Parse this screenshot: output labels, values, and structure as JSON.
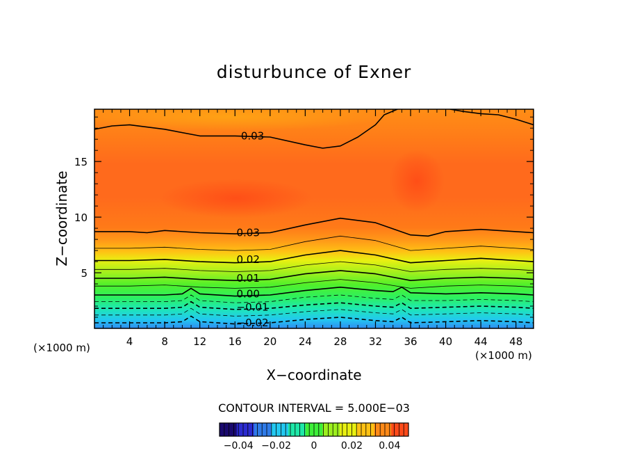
{
  "chart_data": {
    "type": "contour",
    "title": "disturbunce of Exner",
    "xlabel": "X−coordinate",
    "ylabel": "Z−coordinate",
    "x_unit_left": "(×1000 m)",
    "x_unit_right": "(×1000 m)",
    "xlim": [
      0,
      50
    ],
    "ylim": [
      0,
      19.7
    ],
    "x_ticks": [
      4,
      8,
      12,
      16,
      20,
      24,
      28,
      32,
      36,
      40,
      44,
      48
    ],
    "y_ticks": [
      5,
      10,
      15
    ],
    "contour_interval_text": "CONTOUR INTERVAL = 5.000E−03",
    "contour_labels": [
      {
        "text": "0.03",
        "x": 18.0,
        "y": 17.3
      },
      {
        "text": "0.03",
        "x": 17.5,
        "y": 8.6
      },
      {
        "text": "0.02",
        "x": 17.5,
        "y": 6.2
      },
      {
        "text": "0.01",
        "x": 17.5,
        "y": 4.5
      },
      {
        "text": "0.00",
        "x": 17.5,
        "y": 3.1
      },
      {
        "text": "−0.01",
        "x": 18.0,
        "y": 1.9
      },
      {
        "text": "−0.02",
        "x": 18.0,
        "y": 0.5
      }
    ],
    "contours": [
      {
        "level": 0.03,
        "x": [
          0,
          2,
          4,
          8,
          12,
          16,
          20,
          24,
          26,
          28,
          30,
          32,
          33,
          34.5
        ],
        "y": [
          17.9,
          18.2,
          18.3,
          17.9,
          17.3,
          17.3,
          17.2,
          16.5,
          16.2,
          16.4,
          17.2,
          18.3,
          19.2,
          19.7
        ]
      },
      {
        "level": 0.03,
        "x": [
          40.5,
          42,
          44,
          46,
          48,
          50
        ],
        "y": [
          19.7,
          19.5,
          19.3,
          19.2,
          18.8,
          18.3
        ]
      },
      {
        "level": 0.03,
        "x": [
          0,
          4,
          6,
          8,
          12,
          16,
          20,
          24,
          28,
          32,
          36,
          38,
          40,
          44,
          48,
          50
        ],
        "y": [
          8.7,
          8.7,
          8.6,
          8.8,
          8.6,
          8.5,
          8.6,
          9.3,
          9.9,
          9.5,
          8.4,
          8.3,
          8.7,
          8.9,
          8.7,
          8.6
        ]
      },
      {
        "level": 0.025,
        "x": [
          0,
          4,
          8,
          12,
          16,
          20,
          24,
          28,
          32,
          36,
          40,
          44,
          48,
          50
        ],
        "y": [
          7.2,
          7.2,
          7.3,
          7.1,
          7.0,
          7.1,
          7.8,
          8.3,
          7.9,
          7.0,
          7.2,
          7.4,
          7.2,
          7.1
        ]
      },
      {
        "level": 0.02,
        "x": [
          0,
          4,
          8,
          12,
          16,
          20,
          24,
          28,
          32,
          36,
          40,
          44,
          48,
          50
        ],
        "y": [
          6.1,
          6.1,
          6.2,
          6.0,
          5.9,
          6.0,
          6.6,
          7.0,
          6.6,
          5.9,
          6.1,
          6.3,
          6.1,
          6.0
        ]
      },
      {
        "level": 0.015,
        "x": [
          0,
          4,
          8,
          12,
          16,
          20,
          24,
          28,
          32,
          36,
          40,
          44,
          48,
          50
        ],
        "y": [
          5.3,
          5.3,
          5.4,
          5.2,
          5.1,
          5.2,
          5.7,
          6.0,
          5.7,
          5.1,
          5.3,
          5.4,
          5.3,
          5.2
        ]
      },
      {
        "level": 0.01,
        "x": [
          0,
          4,
          8,
          12,
          16,
          20,
          24,
          28,
          32,
          36,
          40,
          44,
          48,
          50
        ],
        "y": [
          4.5,
          4.5,
          4.6,
          4.4,
          4.3,
          4.4,
          4.9,
          5.2,
          4.9,
          4.3,
          4.5,
          4.6,
          4.5,
          4.4
        ]
      },
      {
        "level": 0.005,
        "x": [
          0,
          4,
          8,
          12,
          16,
          20,
          24,
          28,
          32,
          36,
          40,
          44,
          48,
          50
        ],
        "y": [
          3.8,
          3.8,
          3.9,
          3.7,
          3.6,
          3.7,
          4.1,
          4.4,
          4.1,
          3.6,
          3.8,
          3.9,
          3.8,
          3.7
        ]
      },
      {
        "level": 0.0,
        "x": [
          0,
          4,
          8,
          10,
          11,
          12,
          16,
          20,
          24,
          28,
          32,
          34,
          35,
          36,
          40,
          44,
          48,
          50
        ],
        "y": [
          3.0,
          3.0,
          3.0,
          3.1,
          3.6,
          3.1,
          2.9,
          3.0,
          3.4,
          3.7,
          3.4,
          3.3,
          3.7,
          3.2,
          3.1,
          3.2,
          3.1,
          3.0
        ]
      },
      {
        "level": -0.005,
        "x": [
          0,
          4,
          8,
          10,
          11,
          12,
          16,
          20,
          24,
          28,
          32,
          34,
          35,
          36,
          40,
          44,
          48,
          50
        ],
        "y": [
          2.4,
          2.4,
          2.4,
          2.5,
          3.0,
          2.5,
          2.3,
          2.4,
          2.8,
          3.0,
          2.7,
          2.6,
          3.0,
          2.5,
          2.5,
          2.6,
          2.5,
          2.4
        ]
      },
      {
        "level": -0.01,
        "x": [
          0,
          4,
          8,
          10,
          11,
          12,
          16,
          20,
          24,
          28,
          32,
          34,
          35,
          36,
          40,
          44,
          48,
          50
        ],
        "y": [
          1.8,
          1.8,
          1.8,
          1.9,
          2.4,
          1.9,
          1.7,
          1.8,
          2.1,
          2.3,
          2.0,
          1.9,
          2.3,
          1.8,
          1.9,
          2.0,
          1.9,
          1.8
        ]
      },
      {
        "level": -0.015,
        "x": [
          0,
          4,
          8,
          10,
          11,
          12,
          16,
          20,
          24,
          28,
          32,
          34,
          35,
          36,
          40,
          44,
          48,
          50
        ],
        "y": [
          1.2,
          1.2,
          1.2,
          1.3,
          1.8,
          1.3,
          1.1,
          1.2,
          1.5,
          1.7,
          1.4,
          1.3,
          1.7,
          1.2,
          1.3,
          1.4,
          1.3,
          1.2
        ]
      },
      {
        "level": -0.02,
        "x": [
          0,
          4,
          8,
          10,
          11,
          12,
          16,
          20,
          24,
          28,
          32,
          34,
          35,
          36,
          40,
          44,
          48,
          50
        ],
        "y": [
          0.5,
          0.5,
          0.5,
          0.6,
          1.1,
          0.6,
          0.4,
          0.5,
          0.8,
          1.0,
          0.7,
          0.6,
          1.0,
          0.5,
          0.6,
          0.7,
          0.6,
          0.5
        ]
      }
    ],
    "colorbar": {
      "range": [
        -0.05,
        0.05
      ],
      "tick_values": [
        -0.04,
        -0.02,
        0,
        0.02,
        0.04
      ],
      "tick_labels": [
        "−0.04",
        "−0.02",
        "0",
        "0.02",
        "0.04"
      ],
      "colors": [
        "#1a0a6e",
        "#2b2bd0",
        "#2f7be8",
        "#23c8f0",
        "#1ee8a8",
        "#3ef03a",
        "#9cf01e",
        "#e8f012",
        "#ffc214",
        "#ff8a18",
        "#ff4a1a"
      ]
    },
    "colors": {
      "contour": "#000000",
      "background": "#ffffff"
    }
  }
}
